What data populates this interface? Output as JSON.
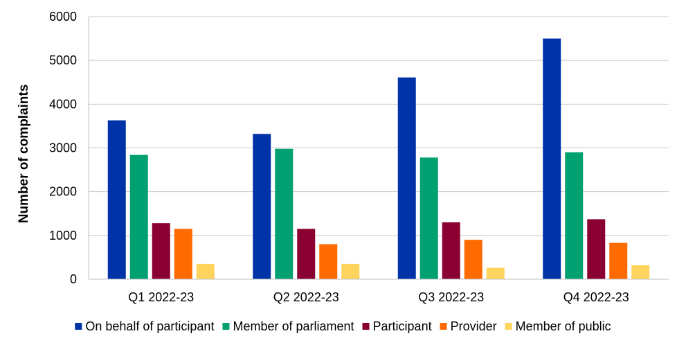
{
  "chart_data": {
    "type": "bar",
    "ylabel": "Number of complaints",
    "ylim": [
      0,
      6000
    ],
    "yticks": [
      0,
      1000,
      2000,
      3000,
      4000,
      5000,
      6000
    ],
    "grid": true,
    "legend_position": "bottom",
    "categories": [
      "Q1 2022-23",
      "Q2 2022-23",
      "Q3 2022-23",
      "Q4 2022-23"
    ],
    "series": [
      {
        "name": "On behalf of participant",
        "color": "#0033a8",
        "values": [
          3630,
          3320,
          4610,
          5500
        ]
      },
      {
        "name": "Member of parliament",
        "color": "#00a070",
        "values": [
          2840,
          2980,
          2780,
          2900
        ]
      },
      {
        "name": "Participant",
        "color": "#8a0032",
        "values": [
          1280,
          1150,
          1300,
          1370
        ]
      },
      {
        "name": "Provider",
        "color": "#ff6b00",
        "values": [
          1150,
          800,
          900,
          830
        ]
      },
      {
        "name": "Member of public",
        "color": "#ffd45c",
        "values": [
          350,
          350,
          260,
          320
        ]
      }
    ]
  }
}
